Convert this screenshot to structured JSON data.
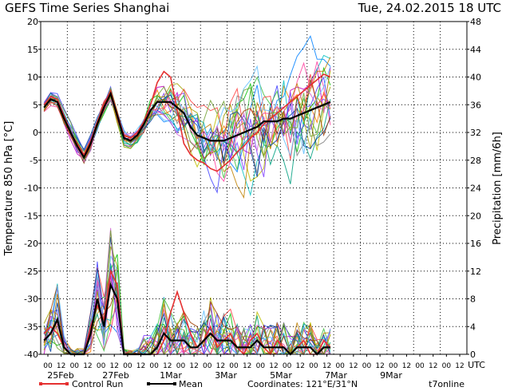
{
  "chart_data": {
    "type": "line",
    "title": "GEFS Time Series Shanghai",
    "datetime": "Tue, 24.02.2015 18 UTC",
    "ylabel_left": "Temperature 850 hPa [°C]",
    "ylabel_right": "Precipitation [mm/6h]",
    "ylim_left": [
      -40,
      20
    ],
    "ylim_right": [
      0,
      48
    ],
    "yticks_left": [
      "20",
      "15",
      "10",
      "5",
      "0",
      "-5",
      "-10",
      "-15",
      "-20",
      "-25",
      "-30",
      "-35",
      "-40"
    ],
    "yticks_right": [
      "48",
      "44",
      "40",
      "36",
      "32",
      "28",
      "24",
      "20",
      "16",
      "12",
      "8",
      "4",
      "0"
    ],
    "x_hour_labels": [
      "00",
      "12",
      "00",
      "12",
      "00",
      "12",
      "00",
      "12",
      "00",
      "12",
      "00",
      "12",
      "00",
      "12",
      "00",
      "12",
      "00",
      "12",
      "00",
      "12",
      "00",
      "12",
      "00",
      "12",
      "00",
      "12",
      "00",
      "12",
      "00",
      "12",
      "00",
      "12",
      "00",
      "12",
      "00",
      "12",
      "00",
      "12",
      "00",
      "12",
      "00",
      "12",
      "00",
      "12",
      "00",
      "12",
      "00",
      "12",
      "00",
      "12",
      "00",
      "12",
      "00",
      "12",
      "00",
      "12",
      "00",
      "12",
      "00",
      "12",
      "00",
      "12",
      "00",
      "12"
    ],
    "x_hour_labels_visible": [
      "00",
      "12",
      "00",
      "12",
      "00",
      "12",
      "00",
      "12",
      "00",
      "12",
      "00",
      "12",
      "00",
      "12",
      "00",
      "12",
      "00",
      "12",
      "00",
      "12",
      "00",
      "12",
      "00",
      "12",
      "00",
      "12",
      "00",
      "12",
      "00",
      "12",
      "00",
      "12"
    ],
    "x_date_labels": [
      "25Feb",
      "27Feb",
      "1Mar",
      "3Mar",
      "5Mar",
      "7Mar",
      "9Mar"
    ],
    "x_unit": "UTC",
    "grid": true,
    "temperature_mean": [
      4.5,
      6.0,
      5.5,
      2.5,
      0.0,
      -2.5,
      -4.5,
      -2.0,
      1.5,
      4.5,
      7.0,
      3.0,
      -1.0,
      -1.5,
      -0.5,
      1.5,
      4.0,
      5.5,
      5.5,
      5.5,
      4.5,
      3.5,
      1.0,
      -0.5,
      -1.0,
      -1.5,
      -1.5,
      -1.5,
      -1.0,
      -0.5,
      0.0,
      0.5,
      1.0,
      2.0,
      2.0,
      2.0,
      2.5,
      2.5,
      3.0,
      3.5,
      4.0,
      4.5,
      5.0,
      5.5
    ],
    "temperature_control": [
      5.0,
      6.5,
      6.0,
      3.0,
      0.0,
      -2.0,
      -4.0,
      -1.5,
      2.0,
      5.0,
      7.5,
      3.5,
      -0.5,
      -1.0,
      0.0,
      2.0,
      5.0,
      9.0,
      11.0,
      10.0,
      4.0,
      -2.0,
      -4.0,
      -5.0,
      -5.5,
      -6.5,
      -7.0,
      -6.0,
      -5.0,
      -3.5,
      -2.5,
      -1.0,
      0.0,
      1.5,
      2.5,
      3.5,
      4.5,
      5.5,
      6.5,
      7.5,
      8.5,
      9.5,
      10.5,
      10.0
    ],
    "precip_mean": [
      2,
      3,
      5,
      1,
      0,
      0,
      0,
      3,
      8,
      4,
      10,
      8,
      0,
      0,
      0,
      0,
      0,
      1,
      3,
      2,
      2,
      2,
      1,
      1,
      2,
      3,
      2,
      2,
      2,
      1,
      1,
      1,
      2,
      1,
      1,
      1,
      1,
      0,
      1,
      1,
      1,
      0,
      1,
      1
    ],
    "precip_control": [
      3,
      4,
      3,
      1,
      0,
      0,
      0,
      4,
      7,
      5,
      12,
      10,
      0,
      0,
      0,
      0,
      0,
      0,
      2,
      6,
      9,
      6,
      3,
      1,
      2,
      4,
      1,
      2,
      3,
      1,
      0,
      2,
      3,
      1,
      0,
      2,
      1,
      0,
      1,
      2,
      0,
      0,
      2,
      1
    ],
    "legend": [
      "Control Run",
      "Mean"
    ],
    "footer": "Coordinates: 121°E/31°N",
    "brand": "t7online",
    "colors": {
      "control": "#e53030",
      "mean": "#000000",
      "grid": "#000000"
    }
  }
}
